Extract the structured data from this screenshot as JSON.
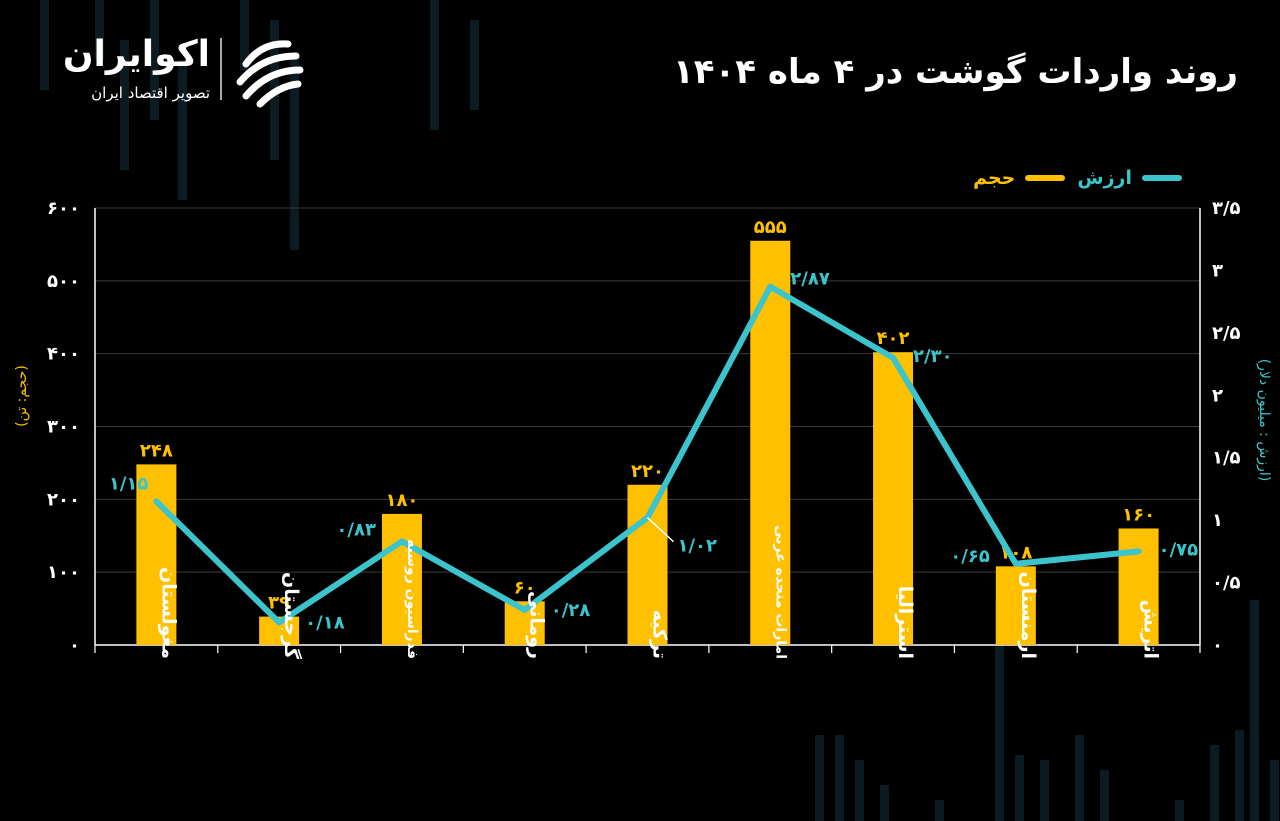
{
  "brand": {
    "name": "اکوایران",
    "tagline": "تصویر اقتصاد ایران"
  },
  "title": "روند واردات گوشت در ۴ ماه ۱۴۰۴",
  "legend": {
    "value_label": "ارزش",
    "volume_label": "حجم"
  },
  "colors": {
    "bar": "#FFC000",
    "line": "#3CC4CC",
    "background": "#000000",
    "axis": "#FFFFFF"
  },
  "chart_data": {
    "type": "bar",
    "categories": [
      "مغولستان",
      "گرجستان",
      "فدراسیون روسیه",
      "رومانی",
      "ترکیه",
      "امارات متحده عربی",
      "استرالیا",
      "ارمنستان",
      "اتریش"
    ],
    "series": [
      {
        "name": "حجم",
        "type": "bar",
        "axis": "left",
        "values": [
          248,
          39,
          180,
          60,
          220,
          555,
          402,
          108,
          160
        ],
        "labels": [
          "۲۴۸",
          "۳۹",
          "۱۸۰",
          "۶۰",
          "۲۲۰",
          "۵۵۵",
          "۴۰۲",
          "۱۰۸",
          "۱۶۰"
        ]
      },
      {
        "name": "ارزش",
        "type": "line",
        "axis": "right",
        "values": [
          1.15,
          0.18,
          0.83,
          0.28,
          1.02,
          2.87,
          2.3,
          0.65,
          0.75
        ],
        "labels": [
          "۱/۱۵",
          "۰/۱۸",
          "۰/۸۳",
          "۰/۲۸",
          "۱/۰۲",
          "۲/۸۷",
          "۲/۳۰",
          "۰/۶۵",
          "۰/۷۵"
        ]
      }
    ],
    "ylabel": "(حجم: تن)",
    "y2label": "(ارزش : میلیون دلار)",
    "ylim": [
      0,
      600
    ],
    "y2lim": [
      0,
      3.5
    ],
    "yticks": [
      "۰",
      "۱۰۰",
      "۲۰۰",
      "۳۰۰",
      "۴۰۰",
      "۵۰۰",
      "۶۰۰"
    ],
    "y2ticks": [
      "۰",
      "۰/۵",
      "۱",
      "۱/۵",
      "۲",
      "۲/۵",
      "۳",
      "۳/۵"
    ],
    "grid": true,
    "legend_position": "top-right"
  }
}
